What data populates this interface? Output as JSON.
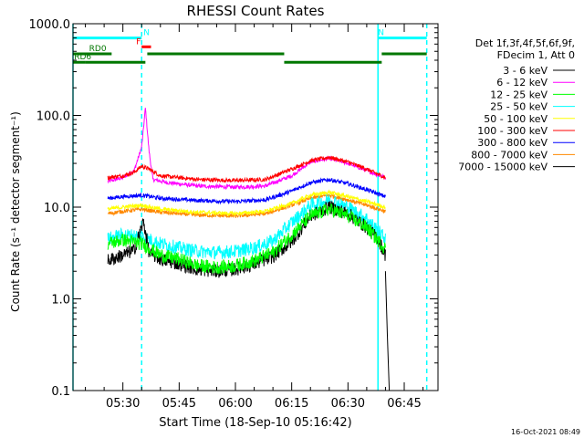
{
  "chart_data": {
    "type": "line",
    "title": "RHESSI Count Rates",
    "xlabel": "Start Time (18-Sep-10 05:16:42)",
    "ylabel": "Count Rate (s⁻¹ detector segment⁻¹)",
    "y_scale": "log",
    "ylim": [
      0.1,
      1000
    ],
    "y_ticks": [
      "0.1",
      "1.0",
      "10.0",
      "100.0",
      "1000.0"
    ],
    "xlim": [
      "05:16:42",
      "06:54:00"
    ],
    "x_ticks": [
      "05:30",
      "05:45",
      "06:00",
      "06:15",
      "06:30",
      "06:45"
    ],
    "legend_position": "right",
    "legend_header": [
      "Det 1f,3f,4f,5f,6f,9f,",
      "FDecim 1, Att 0"
    ],
    "series": [
      {
        "name": "3 - 6 keV",
        "color": "#000000",
        "points": [
          [
            "05:26:00",
            2.6
          ],
          [
            "05:30:00",
            3.0
          ],
          [
            "05:33:00",
            3.4
          ],
          [
            "05:35:30",
            7.0
          ],
          [
            "05:37:00",
            3.2
          ],
          [
            "05:40:00",
            2.7
          ],
          [
            "05:45:00",
            2.4
          ],
          [
            "05:50:00",
            2.1
          ],
          [
            "05:55:00",
            2.0
          ],
          [
            "06:00:00",
            2.1
          ],
          [
            "06:05:00",
            2.4
          ],
          [
            "06:10:00",
            2.9
          ],
          [
            "06:15:00",
            4.2
          ],
          [
            "06:20:00",
            8.0
          ],
          [
            "06:25:00",
            10.0
          ],
          [
            "06:30:00",
            8.5
          ],
          [
            "06:35:00",
            6.0
          ],
          [
            "06:38:00",
            4.5
          ],
          [
            "06:40:00",
            3.0
          ]
        ]
      },
      {
        "name": "6 - 12 keV",
        "color": "#ff00ff",
        "points": [
          [
            "05:26:00",
            19.0
          ],
          [
            "05:30:00",
            21.0
          ],
          [
            "05:33:00",
            25.0
          ],
          [
            "05:35:00",
            45.0
          ],
          [
            "05:36:00",
            120.0
          ],
          [
            "05:37:00",
            40.0
          ],
          [
            "05:38:00",
            20.0
          ],
          [
            "05:42:00",
            18.5
          ],
          [
            "05:50:00",
            17.0
          ],
          [
            "06:00:00",
            16.5
          ],
          [
            "06:08:00",
            17.0
          ],
          [
            "06:15:00",
            22.0
          ],
          [
            "06:20:00",
            31.0
          ],
          [
            "06:25:00",
            34.0
          ],
          [
            "06:30:00",
            30.0
          ],
          [
            "06:35:00",
            25.0
          ],
          [
            "06:40:00",
            21.0
          ]
        ]
      },
      {
        "name": "12 - 25 keV",
        "color": "#00ff00",
        "points": [
          [
            "05:26:00",
            4.0
          ],
          [
            "05:30:00",
            4.4
          ],
          [
            "05:35:00",
            4.0
          ],
          [
            "05:40:00",
            3.0
          ],
          [
            "05:45:00",
            2.7
          ],
          [
            "05:50:00",
            2.3
          ],
          [
            "05:55:00",
            2.2
          ],
          [
            "06:00:00",
            2.3
          ],
          [
            "06:05:00",
            2.6
          ],
          [
            "06:10:00",
            3.2
          ],
          [
            "06:15:00",
            5.0
          ],
          [
            "06:20:00",
            8.0
          ],
          [
            "06:25:00",
            9.5
          ],
          [
            "06:30:00",
            8.0
          ],
          [
            "06:35:00",
            6.0
          ],
          [
            "06:40:00",
            3.5
          ]
        ]
      },
      {
        "name": "25 - 50 keV",
        "color": "#00ffff",
        "points": [
          [
            "05:26:00",
            4.5
          ],
          [
            "05:30:00",
            5.0
          ],
          [
            "05:35:00",
            4.8
          ],
          [
            "05:40:00",
            4.0
          ],
          [
            "05:45:00",
            3.6
          ],
          [
            "05:50:00",
            3.3
          ],
          [
            "05:55:00",
            3.2
          ],
          [
            "06:00:00",
            3.3
          ],
          [
            "06:05:00",
            3.6
          ],
          [
            "06:10:00",
            4.3
          ],
          [
            "06:15:00",
            6.8
          ],
          [
            "06:20:00",
            10.5
          ],
          [
            "06:25:00",
            12.0
          ],
          [
            "06:30:00",
            10.0
          ],
          [
            "06:35:00",
            7.5
          ],
          [
            "06:40:00",
            4.5
          ]
        ]
      },
      {
        "name": "50 - 100 keV",
        "color": "#ffff00",
        "points": [
          [
            "05:26:00",
            9.5
          ],
          [
            "05:30:00",
            10.0
          ],
          [
            "05:35:00",
            10.5
          ],
          [
            "05:40:00",
            9.5
          ],
          [
            "05:50:00",
            8.8
          ],
          [
            "06:00:00",
            8.5
          ],
          [
            "06:08:00",
            9.0
          ],
          [
            "06:15:00",
            11.0
          ],
          [
            "06:20:00",
            13.5
          ],
          [
            "06:25:00",
            14.5
          ],
          [
            "06:30:00",
            13.0
          ],
          [
            "06:35:00",
            11.5
          ],
          [
            "06:40:00",
            10.0
          ]
        ]
      },
      {
        "name": "100 - 300 keV",
        "color": "#ff0000",
        "points": [
          [
            "05:26:00",
            21.0
          ],
          [
            "05:30:00",
            22.0
          ],
          [
            "05:33:00",
            24.0
          ],
          [
            "05:35:00",
            28.0
          ],
          [
            "05:37:00",
            26.0
          ],
          [
            "05:40:00",
            22.0
          ],
          [
            "05:50:00",
            20.0
          ],
          [
            "06:00:00",
            19.5
          ],
          [
            "06:08:00",
            20.0
          ],
          [
            "06:15:00",
            26.0
          ],
          [
            "06:20:00",
            32.0
          ],
          [
            "06:25:00",
            35.0
          ],
          [
            "06:30:00",
            31.0
          ],
          [
            "06:35:00",
            26.0
          ],
          [
            "06:40:00",
            21.0
          ]
        ]
      },
      {
        "name": "300 - 800 keV",
        "color": "#0000ff",
        "points": [
          [
            "05:26:00",
            12.5
          ],
          [
            "05:30:00",
            13.0
          ],
          [
            "05:35:00",
            13.5
          ],
          [
            "05:40:00",
            12.5
          ],
          [
            "05:50:00",
            11.8
          ],
          [
            "06:00:00",
            11.5
          ],
          [
            "06:08:00",
            12.0
          ],
          [
            "06:15:00",
            15.0
          ],
          [
            "06:20:00",
            18.5
          ],
          [
            "06:25:00",
            20.0
          ],
          [
            "06:30:00",
            18.0
          ],
          [
            "06:35:00",
            15.5
          ],
          [
            "06:40:00",
            13.0
          ]
        ]
      },
      {
        "name": "800 - 7000 keV",
        "color": "#ff8800",
        "points": [
          [
            "05:26:00",
            8.5
          ],
          [
            "05:30:00",
            9.0
          ],
          [
            "05:35:00",
            9.5
          ],
          [
            "05:40:00",
            8.8
          ],
          [
            "05:50:00",
            8.2
          ],
          [
            "06:00:00",
            8.0
          ],
          [
            "06:08:00",
            8.5
          ],
          [
            "06:15:00",
            10.5
          ],
          [
            "06:20:00",
            12.5
          ],
          [
            "06:25:00",
            13.5
          ],
          [
            "06:30:00",
            12.0
          ],
          [
            "06:35:00",
            10.5
          ],
          [
            "06:40:00",
            9.0
          ]
        ]
      },
      {
        "name": "7000 - 15000 keV",
        "color": "#000000",
        "points": [
          [
            "06:40:00",
            2.0
          ],
          [
            "06:40:30",
            0.4
          ],
          [
            "06:41:00",
            0.1
          ]
        ]
      }
    ],
    "annotations": [
      {
        "label": "N",
        "color": "#00ffff",
        "start": "05:16:42",
        "end": "05:35:00",
        "level": 700,
        "label_at": "05:35:30"
      },
      {
        "label": "N",
        "color": "#00ffff",
        "start": "06:38:00",
        "end": "06:51:00",
        "level": 700
      },
      {
        "label": "F",
        "color": "#ff0000",
        "start": "05:35:00",
        "end": "05:37:30",
        "level": 560,
        "label_at": "05:33:30"
      },
      {
        "label": "RD0",
        "color": "#007700",
        "start": "05:16:42",
        "end": "05:27:00",
        "level": 470,
        "label_at": "05:21:00"
      },
      {
        "label": "RD6",
        "color": "#007700",
        "start": "05:16:42",
        "end": "05:20:00",
        "level": 380,
        "label_at": "05:17:00"
      },
      {
        "label": "",
        "color": "#007700",
        "start": "05:20:00",
        "end": "05:36:00",
        "level": 380
      },
      {
        "label": "",
        "color": "#007700",
        "start": "05:36:30",
        "end": "06:13:00",
        "level": 470
      },
      {
        "label": "",
        "color": "#007700",
        "start": "06:13:00",
        "end": "06:39:00",
        "level": 380
      },
      {
        "label": "",
        "color": "#007700",
        "start": "06:39:00",
        "end": "06:51:00",
        "level": 470
      }
    ],
    "vertical_lines": [
      {
        "time": "05:16:42",
        "color": "#00ffff",
        "style": "solid"
      },
      {
        "time": "05:35:00",
        "color": "#00ffff",
        "style": "dashed"
      },
      {
        "time": "06:38:00",
        "color": "#00ffff",
        "style": "solid"
      },
      {
        "time": "06:51:00",
        "color": "#00ffff",
        "style": "dashed"
      }
    ]
  },
  "footer": {
    "timestamp": "16-Oct-2021 08:49"
  }
}
